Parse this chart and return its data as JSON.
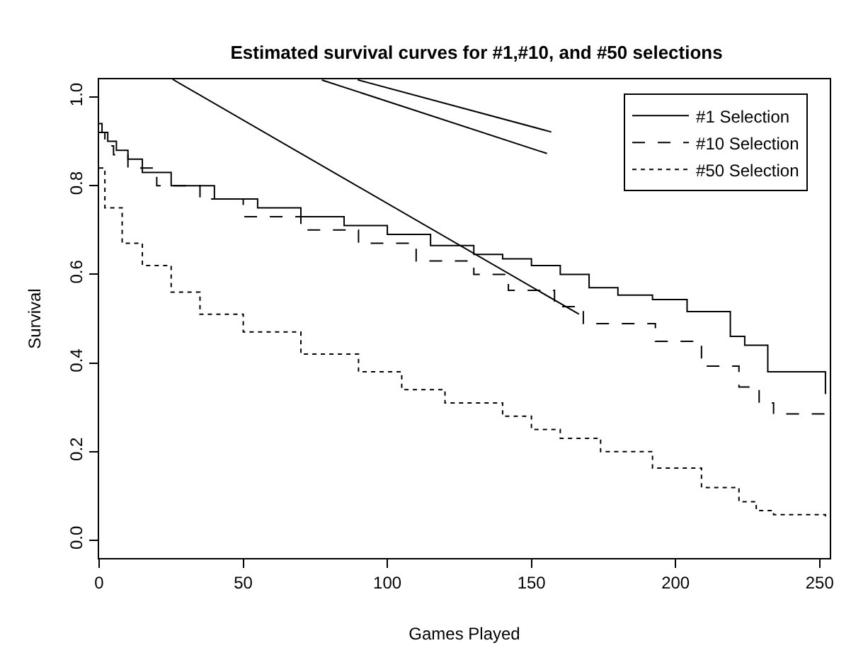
{
  "chart_data": {
    "type": "step",
    "title": "Estimated survival curves for #1,#10, and #50 selections",
    "xlabel": "Games Played",
    "ylabel": "Survival",
    "xlim": [
      0,
      253.5
    ],
    "ylim": [
      -0.04,
      1.04
    ],
    "xticks": [
      0,
      50,
      100,
      150,
      200,
      250
    ],
    "yticks": [
      {
        "value": 0,
        "label": "0.0"
      },
      0.2,
      0.4,
      0.6,
      0.8,
      {
        "value": 1,
        "label": "1.0"
      }
    ],
    "legend": "top right",
    "marker": "none",
    "series": [
      {
        "name": "#1 Selection",
        "color": "#000000",
        "line_style": "solid",
        "x": [
          0,
          1,
          3,
          6,
          10,
          15,
          25,
          40,
          55,
          70,
          85,
          100,
          115,
          130,
          140,
          150,
          160,
          170,
          180,
          192,
          204,
          219,
          224,
          232,
          252,
          252
        ],
        "values": [
          0.94,
          0.92,
          0.9,
          0.88,
          0.86,
          0.83,
          0.8,
          0.77,
          0.75,
          0.73,
          0.71,
          0.69,
          0.665,
          0.645,
          0.635,
          0.62,
          0.6,
          0.57,
          0.553,
          0.543,
          0.516,
          0.46,
          0.44,
          0.38,
          0.356,
          0.33
        ]
      },
      {
        "name": "#10 Selection",
        "color": "#000000",
        "line_style": "dashed",
        "x": [
          0,
          2,
          5,
          10,
          20,
          35,
          50,
          70,
          90,
          110,
          130,
          142,
          158,
          168,
          193,
          209,
          222,
          229,
          234,
          252
        ],
        "values": [
          0.92,
          0.89,
          0.87,
          0.84,
          0.8,
          0.77,
          0.73,
          0.7,
          0.67,
          0.63,
          0.6,
          0.564,
          0.527,
          0.489,
          0.449,
          0.393,
          0.346,
          0.31,
          0.285,
          0.285
        ]
      },
      {
        "name": "#50 Selection",
        "color": "#000000",
        "line_style": "dotted",
        "x": [
          0,
          2,
          8,
          15,
          25,
          35,
          50,
          70,
          90,
          105,
          120,
          140,
          150,
          160,
          174,
          192,
          209,
          222,
          228,
          234,
          252,
          252
        ],
        "values": [
          0.84,
          0.75,
          0.67,
          0.62,
          0.56,
          0.51,
          0.47,
          0.42,
          0.38,
          0.34,
          0.31,
          0.28,
          0.25,
          0.23,
          0.2,
          0.163,
          0.119,
          0.087,
          0.067,
          0.058,
          0.058,
          0.05
        ]
      },
      {
        "type": "line",
        "color": "#000000",
        "line_style": "solid",
        "x": [
          25.5,
          166.5
        ],
        "values": [
          1.04,
          0.51
        ]
      }
    ]
  }
}
